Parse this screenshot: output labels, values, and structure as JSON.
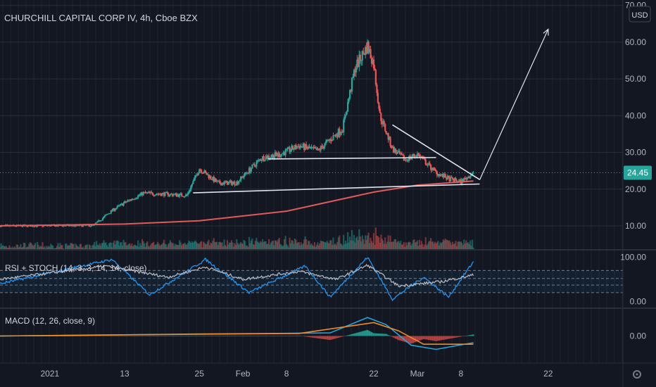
{
  "header": {
    "symbol_title": "CHURCHILL CAPITAL CORP IV, 4h, Cboe BZX",
    "currency": "USD"
  },
  "colors": {
    "background": "#131722",
    "grid": "#2a2e39",
    "up": "#26a69a",
    "down": "#ef5350",
    "ma": "#e05a5a",
    "rsi": "#b2b5be",
    "stoch_k": "#2196f3",
    "macd": "#26a3d9",
    "signal": "#f08a24",
    "price_badge": "#26a69a",
    "drawing": "#e0e3eb"
  },
  "icons": {
    "gear": "gear-icon"
  },
  "chart_data": {
    "type": "candlestick",
    "title": "CHURCHILL CAPITAL CORP IV, 4h, Cboe BZX",
    "x_tick_labels": [
      "2021",
      "13",
      "25",
      "Feb",
      "8",
      "22",
      "Mar",
      "8",
      "22"
    ],
    "x_tick_dates": [
      "2021-01-01",
      "2021-01-13",
      "2021-01-25",
      "2021-02-01",
      "2021-02-08",
      "2021-02-22",
      "2021-03-01",
      "2021-03-08",
      "2021-03-22"
    ],
    "x_range": [
      "2020-12-24",
      "2021-04-03"
    ],
    "price_axis": {
      "ticks": [
        10,
        20,
        30,
        40,
        50,
        60,
        70
      ],
      "tick_labels": [
        "10.00",
        "20.00",
        "30.00",
        "40.00",
        "50.00",
        "60.00",
        "70.00"
      ],
      "range": [
        3.5,
        70.5
      ],
      "currency": "USD"
    },
    "last_price": 24.45,
    "last_price_label": "24.45",
    "price_path": [
      {
        "date": "2020-12-24",
        "price": 10.0
      },
      {
        "date": "2021-01-08",
        "price": 10.1
      },
      {
        "date": "2021-01-11",
        "price": 14.2
      },
      {
        "date": "2021-01-13",
        "price": 16.3
      },
      {
        "date": "2021-01-16",
        "price": 18.9
      },
      {
        "date": "2021-01-20",
        "price": 18.6
      },
      {
        "date": "2021-01-23",
        "price": 18.3
      },
      {
        "date": "2021-01-25",
        "price": 25.6
      },
      {
        "date": "2021-01-28",
        "price": 21.6
      },
      {
        "date": "2021-01-31",
        "price": 21.8
      },
      {
        "date": "2021-02-04",
        "price": 28.5
      },
      {
        "date": "2021-02-07",
        "price": 29.5
      },
      {
        "date": "2021-02-10",
        "price": 31.8
      },
      {
        "date": "2021-02-13",
        "price": 30.4
      },
      {
        "date": "2021-02-17",
        "price": 36.5
      },
      {
        "date": "2021-02-19",
        "price": 53.0
      },
      {
        "date": "2021-02-21",
        "price": 59.0
      },
      {
        "date": "2021-02-22",
        "price": 54.0
      },
      {
        "date": "2021-02-23",
        "price": 40.0
      },
      {
        "date": "2021-02-25",
        "price": 31.0
      },
      {
        "date": "2021-02-27",
        "price": 28.0
      },
      {
        "date": "2021-03-01",
        "price": 29.5
      },
      {
        "date": "2021-03-04",
        "price": 24.5
      },
      {
        "date": "2021-03-06",
        "price": 22.8
      },
      {
        "date": "2021-03-08",
        "price": 22.0
      },
      {
        "date": "2021-03-10",
        "price": 24.45
      }
    ],
    "moving_average": [
      {
        "date": "2020-12-24",
        "price": 10.0
      },
      {
        "date": "2021-01-13",
        "price": 10.5
      },
      {
        "date": "2021-01-25",
        "price": 11.4
      },
      {
        "date": "2021-02-08",
        "price": 14.0
      },
      {
        "date": "2021-02-22",
        "price": 19.2
      },
      {
        "date": "2021-03-01",
        "price": 21.1
      },
      {
        "date": "2021-03-10",
        "price": 22.2
      }
    ],
    "drawings": {
      "support_line": [
        {
          "date": "2021-01-24",
          "price": 19.0
        },
        {
          "date": "2021-03-11",
          "price": 21.4
        }
      ],
      "neckline": [
        {
          "date": "2021-02-05",
          "price": 28.2
        },
        {
          "date": "2021-03-04",
          "price": 28.6
        }
      ],
      "descending_trendline": [
        {
          "date": "2021-02-25",
          "price": 37.5
        },
        {
          "date": "2021-03-11",
          "price": 22.6
        }
      ],
      "projection_arrow": [
        {
          "date": "2021-03-11",
          "price": 22.5
        },
        {
          "date": "2021-03-22",
          "price": 63.5
        }
      ]
    },
    "rsi_stoch": {
      "label": "RSI + STOCH (14, 3, 3, 14, 14, close)",
      "ticks": [
        0,
        100
      ],
      "tick_labels": [
        "0.00",
        "100.00"
      ],
      "range": [
        -12,
        112
      ],
      "band_levels": [
        20,
        37,
        52,
        70
      ],
      "rsi": [
        {
          "date": "2020-12-24",
          "value": 50
        },
        {
          "date": "2021-01-10",
          "value": 80
        },
        {
          "date": "2021-01-20",
          "value": 55
        },
        {
          "date": "2021-01-26",
          "value": 78
        },
        {
          "date": "2021-02-01",
          "value": 50
        },
        {
          "date": "2021-02-10",
          "value": 68
        },
        {
          "date": "2021-02-16",
          "value": 50
        },
        {
          "date": "2021-02-21",
          "value": 82
        },
        {
          "date": "2021-02-26",
          "value": 35
        },
        {
          "date": "2021-03-05",
          "value": 45
        },
        {
          "date": "2021-03-10",
          "value": 60
        }
      ],
      "stoch": [
        {
          "date": "2020-12-24",
          "value": 40
        },
        {
          "date": "2021-01-11",
          "value": 95
        },
        {
          "date": "2021-01-17",
          "value": 15
        },
        {
          "date": "2021-01-26",
          "value": 95
        },
        {
          "date": "2021-02-02",
          "value": 20
        },
        {
          "date": "2021-02-11",
          "value": 80
        },
        {
          "date": "2021-02-15",
          "value": 10
        },
        {
          "date": "2021-02-21",
          "value": 100
        },
        {
          "date": "2021-02-25",
          "value": 5
        },
        {
          "date": "2021-03-02",
          "value": 55
        },
        {
          "date": "2021-03-06",
          "value": 10
        },
        {
          "date": "2021-03-10",
          "value": 90
        }
      ]
    },
    "macd": {
      "label": "MACD (12, 26, close, 9)",
      "ticks": [
        0
      ],
      "tick_labels": [
        "0.00"
      ],
      "range": [
        -5,
        5
      ],
      "macd_line": [
        {
          "date": "2020-12-24",
          "value": 0
        },
        {
          "date": "2021-01-10",
          "value": 0.2
        },
        {
          "date": "2021-01-25",
          "value": 0.4
        },
        {
          "date": "2021-02-05",
          "value": 0.5
        },
        {
          "date": "2021-02-15",
          "value": 0.6
        },
        {
          "date": "2021-02-21",
          "value": 3.6
        },
        {
          "date": "2021-02-24",
          "value": 2.2
        },
        {
          "date": "2021-02-28",
          "value": -1.8
        },
        {
          "date": "2021-03-04",
          "value": -2.6
        },
        {
          "date": "2021-03-10",
          "value": -1.3
        }
      ],
      "signal_line": [
        {
          "date": "2020-12-24",
          "value": 0
        },
        {
          "date": "2021-01-20",
          "value": 0.3
        },
        {
          "date": "2021-02-10",
          "value": 0.5
        },
        {
          "date": "2021-02-22",
          "value": 2.6
        },
        {
          "date": "2021-02-26",
          "value": 1.0
        },
        {
          "date": "2021-03-02",
          "value": -1.6
        },
        {
          "date": "2021-03-10",
          "value": -1.6
        }
      ]
    }
  }
}
